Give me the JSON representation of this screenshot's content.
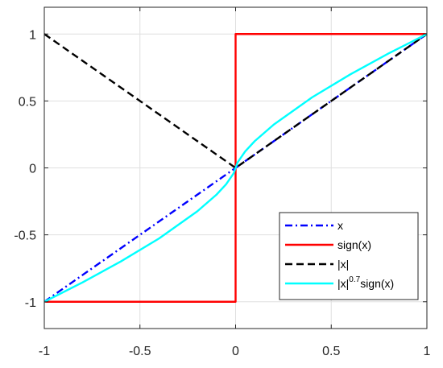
{
  "chart_data": {
    "type": "line",
    "xlim": [
      -1,
      1
    ],
    "ylim": [
      -1.2,
      1.2
    ],
    "xticks": [
      -1,
      -0.5,
      0,
      0.5,
      1
    ],
    "xtick_labels": [
      "-1",
      "-0.5",
      "0",
      "0.5",
      "1"
    ],
    "yticks": [
      -1,
      -0.5,
      0,
      0.5,
      1
    ],
    "ytick_labels": [
      "-1",
      "-0.5",
      "0",
      "0.5",
      "1"
    ],
    "grid": true,
    "legend_position": "bottom-right",
    "series": [
      {
        "name": "x",
        "color": "#0000ff",
        "style": "dash-dot",
        "x": [
          -1,
          0,
          1
        ],
        "y": [
          -1,
          0,
          1
        ]
      },
      {
        "name": "sign(x)",
        "color": "#ff0000",
        "style": "solid",
        "x": [
          -1,
          0,
          0,
          1
        ],
        "y": [
          -1,
          -1,
          1,
          1
        ]
      },
      {
        "name": "|x|",
        "color": "#000000",
        "style": "dashed",
        "x": [
          -1,
          0,
          1
        ],
        "y": [
          1,
          0,
          1
        ]
      },
      {
        "name": "|x|0.7sign(x)",
        "legend_base": "|x|",
        "legend_sup": "0.7",
        "legend_tail": "sign(x)",
        "color": "#00ffff",
        "style": "solid",
        "x": [
          -1,
          -0.8,
          -0.6,
          -0.4,
          -0.2,
          -0.1,
          -0.05,
          -0.01,
          0,
          0.01,
          0.05,
          0.1,
          0.2,
          0.4,
          0.6,
          0.8,
          1
        ],
        "y": [
          -1,
          -0.855,
          -0.699,
          -0.527,
          -0.324,
          -0.2,
          -0.123,
          -0.04,
          0,
          0.04,
          0.123,
          0.2,
          0.324,
          0.527,
          0.699,
          0.855,
          1
        ]
      }
    ]
  }
}
